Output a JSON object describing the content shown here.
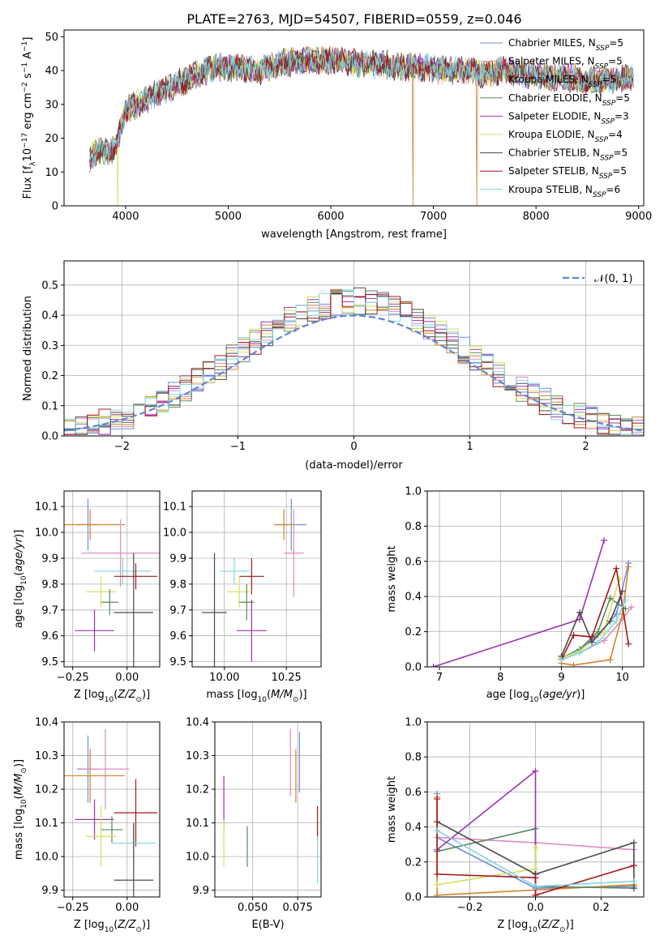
{
  "figure_title": "PLATE=2763, MJD=54507, FIBERID=0559, z=0.046",
  "palette": {
    "Chabrier MILES": "#6b8fdc",
    "Salpeter MILES": "#e08bbd",
    "Kroupa MILES": "#d4832e",
    "Chabrier ELODIE": "#5a8a5e",
    "Salpeter ELODIE": "#9b33b0",
    "Kroupa ELODIE": "#d4e05a",
    "Chabrier STELIB": "#4a4a4a",
    "Salpeter STELIB": "#a5171c",
    "Kroupa STELIB": "#7fd6e2"
  },
  "chart_data": [
    {
      "id": "spectrum",
      "type": "line",
      "title": "PLATE=2763, MJD=54507, FIBERID=0559, z=0.046",
      "xlabel": "wavelength [Angstrom, rest frame]",
      "ylabel": "Flux [f_λ10^−17 erg cm^−2 s^−1 A^−1]",
      "xlim": [
        3400,
        9050
      ],
      "ylim": [
        0,
        52
      ],
      "xticks": [
        "4000",
        "5000",
        "6000",
        "7000",
        "8000",
        "9000"
      ],
      "yticks": [
        "0",
        "10",
        "20",
        "30",
        "40",
        "50"
      ],
      "grid": false,
      "legend_position": "top-right",
      "legend": [
        {
          "model": "Chabrier MILES",
          "nssp": "5"
        },
        {
          "model": "Salpeter MILES",
          "nssp": "5"
        },
        {
          "model": "Kroupa MILES",
          "nssp": "5"
        },
        {
          "model": "Chabrier ELODIE",
          "nssp": "5"
        },
        {
          "model": "Salpeter ELODIE",
          "nssp": "3"
        },
        {
          "model": "Kroupa ELODIE",
          "nssp": "4"
        },
        {
          "model": "Chabrier STELIB",
          "nssp": "5"
        },
        {
          "model": "Salpeter STELIB",
          "nssp": "5"
        },
        {
          "model": "Kroupa STELIB",
          "nssp": "6"
        }
      ],
      "spectrum_envelope": {
        "x": [
          3650,
          3700,
          3800,
          3900,
          4000,
          4100,
          4300,
          4500,
          4700,
          4900,
          5100,
          5300,
          5500,
          5700,
          5900,
          6100,
          6300,
          6500,
          6700,
          6900,
          7100,
          7300,
          7500,
          7700,
          7900,
          8100,
          8300,
          8500,
          8700,
          8900
        ],
        "y": [
          14,
          16,
          16,
          17,
          28,
          30,
          33,
          36,
          39,
          41,
          41,
          40,
          42,
          43,
          43,
          43,
          42,
          42,
          41,
          41,
          40,
          40,
          39,
          40,
          39,
          38,
          38,
          37,
          37,
          38
        ]
      },
      "dips": [
        {
          "x": 3920,
          "y": 0,
          "series": "Kroupa ELODIE"
        },
        {
          "x": 6800,
          "y": 0,
          "series": "Kroupa MILES"
        },
        {
          "x": 7420,
          "y": 0,
          "series": "Kroupa MILES"
        }
      ]
    },
    {
      "id": "residuals",
      "type": "step",
      "xlabel": "(data-model)/error",
      "ylabel": "Normed distribution",
      "xlim": [
        -2.5,
        2.5
      ],
      "ylim": [
        0,
        0.58
      ],
      "xticks": [
        "−2",
        "−1",
        "0",
        "1",
        "2"
      ],
      "yticks": [
        "0.0",
        "0.1",
        "0.2",
        "0.3",
        "0.4",
        "0.5"
      ],
      "grid": true,
      "legend_position": "top-right",
      "reference_curve": {
        "label": "𝒩(0, 1)",
        "mean": 0,
        "sigma": 1,
        "color": "#5b87d4"
      },
      "bin_width": 0.1
    },
    {
      "id": "age_vs_Z",
      "type": "errorbar",
      "xlabel": "Z [log10(Z/Z⊙)]",
      "ylabel": "age [log10(age/yr)]",
      "xlim": [
        -0.29,
        0.15
      ],
      "ylim": [
        9.48,
        10.16
      ],
      "xticks": [
        "−0.25",
        "0.00"
      ],
      "yticks": [
        "9.5",
        "9.6",
        "9.7",
        "9.8",
        "9.9",
        "10.0",
        "10.1"
      ],
      "grid": true,
      "points": [
        {
          "series": "Chabrier MILES",
          "x": -0.18,
          "xerr": 0.05,
          "y": 10.03,
          "yerr": 0.1
        },
        {
          "series": "Kroupa MILES",
          "x": -0.17,
          "xerr": 0.16,
          "y": 10.03,
          "yerr": 0.06
        },
        {
          "series": "Salpeter MILES",
          "x": -0.03,
          "xerr": 0.18,
          "y": 9.92,
          "yerr": 0.13
        },
        {
          "series": "Kroupa STELIB",
          "x": -0.02,
          "xerr": 0.13,
          "y": 9.85,
          "yerr": 0.05
        },
        {
          "series": "Salpeter STELIB",
          "x": 0.04,
          "xerr": 0.1,
          "y": 9.83,
          "yerr": 0.05
        },
        {
          "series": "Kroupa ELODIE",
          "x": -0.12,
          "xerr": 0.07,
          "y": 9.77,
          "yerr": 0.06
        },
        {
          "series": "Chabrier ELODIE",
          "x": -0.08,
          "xerr": 0.04,
          "y": 9.73,
          "yerr": 0.05
        },
        {
          "series": "Chabrier STELIB",
          "x": 0.03,
          "xerr": 0.09,
          "y": 9.69,
          "yerr": 0.23
        },
        {
          "series": "Salpeter ELODIE",
          "x": -0.15,
          "xerr": 0.09,
          "y": 9.62,
          "yerr": 0.08
        }
      ]
    },
    {
      "id": "age_vs_mass",
      "type": "errorbar",
      "xlabel": "mass [log10(M/M⊙)]",
      "ylabel": "",
      "xlim": [
        9.87,
        10.39
      ],
      "ylim": [
        9.48,
        10.16
      ],
      "xticks": [
        "10.00",
        "10.25"
      ],
      "yticks": [
        "9.5",
        "9.6",
        "9.7",
        "9.8",
        "9.9",
        "10.0",
        "10.1"
      ],
      "grid": true,
      "points": [
        {
          "series": "Chabrier MILES",
          "x": 10.27,
          "xerr": 0.06,
          "y": 10.03,
          "yerr": 0.1
        },
        {
          "series": "Kroupa MILES",
          "x": 10.24,
          "xerr": 0.04,
          "y": 10.03,
          "yerr": 0.06
        },
        {
          "series": "Salpeter MILES",
          "x": 10.28,
          "xerr": 0.04,
          "y": 9.92,
          "yerr": 0.17
        },
        {
          "series": "Kroupa STELIB",
          "x": 10.04,
          "xerr": 0.06,
          "y": 9.85,
          "yerr": 0.05
        },
        {
          "series": "Salpeter STELIB",
          "x": 10.11,
          "xerr": 0.05,
          "y": 9.83,
          "yerr": 0.07
        },
        {
          "series": "Kroupa ELODIE",
          "x": 10.06,
          "xerr": 0.05,
          "y": 9.77,
          "yerr": 0.06
        },
        {
          "series": "Chabrier ELODIE",
          "x": 10.09,
          "xerr": 0.03,
          "y": 9.73,
          "yerr": 0.07
        },
        {
          "series": "Chabrier STELIB",
          "x": 9.96,
          "xerr": 0.05,
          "y": 9.69,
          "yerr": 0.23
        },
        {
          "series": "Salpeter ELODIE",
          "x": 10.11,
          "xerr": 0.06,
          "y": 9.62,
          "yerr": 0.12
        }
      ]
    },
    {
      "id": "weight_vs_age",
      "type": "line",
      "xlabel": "age [log10(age/yr)]",
      "ylabel": "mass weight",
      "xlim": [
        6.8,
        10.35
      ],
      "ylim": [
        0,
        1.0
      ],
      "xticks": [
        "7",
        "8",
        "9",
        "10"
      ],
      "yticks": [
        "0.0",
        "0.2",
        "0.4",
        "0.6",
        "0.8",
        "1.0"
      ],
      "grid": true,
      "series": [
        {
          "name": "Chabrier MILES",
          "points": [
            [
              9.0,
              0.05
            ],
            [
              9.3,
              0.1
            ],
            [
              9.6,
              0.18
            ],
            [
              9.9,
              0.3
            ],
            [
              10.1,
              0.59
            ]
          ]
        },
        {
          "name": "Salpeter MILES",
          "points": [
            [
              9.0,
              0.04
            ],
            [
              9.3,
              0.08
            ],
            [
              9.7,
              0.15
            ],
            [
              10.0,
              0.27
            ],
            [
              10.15,
              0.34
            ]
          ]
        },
        {
          "name": "Kroupa MILES",
          "points": [
            [
              9.0,
              0.02
            ],
            [
              9.2,
              0.01
            ],
            [
              9.8,
              0.04
            ],
            [
              10.0,
              0.3
            ],
            [
              10.1,
              0.57
            ]
          ]
        },
        {
          "name": "Chabrier ELODIE",
          "points": [
            [
              9.0,
              0.05
            ],
            [
              9.3,
              0.1
            ],
            [
              9.6,
              0.2
            ],
            [
              9.8,
              0.39
            ],
            [
              10.05,
              0.33
            ]
          ]
        },
        {
          "name": "Salpeter ELODIE",
          "points": [
            [
              6.9,
              0.0
            ],
            [
              9.3,
              0.27
            ],
            [
              9.7,
              0.72
            ]
          ]
        },
        {
          "name": "Kroupa ELODIE",
          "points": [
            [
              9.0,
              0.05
            ],
            [
              9.3,
              0.09
            ],
            [
              9.7,
              0.2
            ],
            [
              9.95,
              0.5
            ]
          ]
        },
        {
          "name": "Chabrier STELIB",
          "points": [
            [
              9.0,
              0.06
            ],
            [
              9.3,
              0.31
            ],
            [
              9.5,
              0.14
            ],
            [
              9.8,
              0.26
            ],
            [
              10.0,
              0.43
            ]
          ]
        },
        {
          "name": "Salpeter STELIB",
          "points": [
            [
              9.0,
              0.04
            ],
            [
              9.2,
              0.18
            ],
            [
              9.5,
              0.17
            ],
            [
              9.9,
              0.56
            ],
            [
              10.1,
              0.13
            ]
          ]
        },
        {
          "name": "Kroupa STELIB",
          "points": [
            [
              9.0,
              0.04
            ],
            [
              9.3,
              0.08
            ],
            [
              9.6,
              0.14
            ],
            [
              9.9,
              0.26
            ],
            [
              10.05,
              0.38
            ]
          ]
        }
      ]
    },
    {
      "id": "mass_vs_Z",
      "type": "errorbar",
      "xlabel": "Z [log10(Z/Z⊙)]",
      "ylabel": "mass [log10(M/M⊙)]",
      "xlim": [
        -0.29,
        0.15
      ],
      "ylim": [
        9.88,
        10.4
      ],
      "xticks": [
        "−0.25",
        "0.00"
      ],
      "yticks": [
        "9.9",
        "10.0",
        "10.1",
        "10.2",
        "10.3",
        "10.4"
      ],
      "grid": true,
      "points": [
        {
          "series": "Chabrier MILES",
          "x": -0.18,
          "xerr": 0.05,
          "y": 10.26,
          "yerr": 0.1
        },
        {
          "series": "Salpeter MILES",
          "x": -0.1,
          "xerr": 0.11,
          "y": 10.26,
          "yerr": 0.12
        },
        {
          "series": "Kroupa MILES",
          "x": -0.17,
          "xerr": 0.16,
          "y": 10.24,
          "yerr": 0.08
        },
        {
          "series": "Salpeter STELIB",
          "x": 0.04,
          "xerr": 0.1,
          "y": 10.13,
          "yerr": 0.1
        },
        {
          "series": "Salpeter ELODIE",
          "x": -0.15,
          "xerr": 0.09,
          "y": 10.11,
          "yerr": 0.06
        },
        {
          "series": "Chabrier ELODIE",
          "x": -0.07,
          "xerr": 0.05,
          "y": 10.08,
          "yerr": 0.04
        },
        {
          "series": "Kroupa ELODIE",
          "x": -0.12,
          "xerr": 0.07,
          "y": 10.06,
          "yerr": 0.09
        },
        {
          "series": "Kroupa STELIB",
          "x": 0.03,
          "xerr": 0.1,
          "y": 10.04,
          "yerr": 0.06
        },
        {
          "series": "Chabrier STELIB",
          "x": 0.03,
          "xerr": 0.09,
          "y": 9.93,
          "yerr": 0.17
        }
      ]
    },
    {
      "id": "mass_vs_ebv",
      "type": "errorbar",
      "xlabel": "E(B-V)",
      "ylabel": "",
      "xlim": [
        0.029,
        0.088
      ],
      "ylim": [
        9.88,
        10.4
      ],
      "xticks": [
        "0.050",
        "0.075"
      ],
      "yticks": [
        "9.9",
        "10.0",
        "10.1",
        "10.2",
        "10.3",
        "10.4"
      ],
      "grid": true,
      "points": [
        {
          "series": "Chabrier MILES",
          "x": 0.076,
          "xerr": 0,
          "y": 10.28,
          "yerr": 0.09
        },
        {
          "series": "Salpeter MILES",
          "x": 0.071,
          "xerr": 0,
          "y": 10.28,
          "yerr": 0.1
        },
        {
          "series": "Kroupa MILES",
          "x": 0.074,
          "xerr": 0,
          "y": 10.24,
          "yerr": 0.08
        },
        {
          "series": "Salpeter ELODIE",
          "x": 0.034,
          "xerr": 0,
          "y": 10.16,
          "yerr": 0.08
        },
        {
          "series": "Salpeter STELIB",
          "x": 0.086,
          "xerr": 0,
          "y": 10.1,
          "yerr": 0.05
        },
        {
          "series": "Kroupa ELODIE",
          "x": 0.034,
          "xerr": 0,
          "y": 10.04,
          "yerr": 0.07
        },
        {
          "series": "Chabrier ELODIE",
          "x": 0.047,
          "xerr": 0,
          "y": 10.03,
          "yerr": 0.06
        },
        {
          "series": "Kroupa STELIB",
          "x": 0.086,
          "xerr": 0,
          "y": 9.99,
          "yerr": 0.07
        }
      ]
    },
    {
      "id": "weight_vs_Z",
      "type": "line",
      "xlabel": "Z [log10(Z/Z⊙)]",
      "ylabel": "mass weight",
      "xlim": [
        -0.33,
        0.33
      ],
      "ylim": [
        0,
        1.0
      ],
      "xticks": [
        "−0.2",
        "0.0",
        "0.2"
      ],
      "yticks": [
        "0.0",
        "0.2",
        "0.4",
        "0.6",
        "0.8",
        "1.0"
      ],
      "grid": true,
      "series": [
        {
          "name": "Chabrier MILES",
          "points": [
            [
              -0.3,
              0.59
            ],
            [
              -0.3,
              0.34
            ],
            [
              0.0,
              0.05
            ],
            [
              0.3,
              0.06
            ]
          ]
        },
        {
          "name": "Salpeter MILES",
          "points": [
            [
              -0.3,
              0.34
            ],
            [
              0.0,
              0.31
            ],
            [
              0.3,
              0.27
            ]
          ]
        },
        {
          "name": "Kroupa MILES",
          "points": [
            [
              -0.3,
              0.57
            ],
            [
              -0.3,
              0.01
            ],
            [
              0.0,
              0.04
            ],
            [
              0.3,
              0.07
            ]
          ]
        },
        {
          "name": "Chabrier ELODIE",
          "points": [
            [
              -0.3,
              0.26
            ],
            [
              0.0,
              0.39
            ],
            [
              0.0,
              0.06
            ],
            [
              0.3,
              0.05
            ]
          ]
        },
        {
          "name": "Salpeter ELODIE",
          "points": [
            [
              -0.3,
              0.27
            ],
            [
              0.0,
              0.72
            ],
            [
              0.0,
              0.01
            ]
          ]
        },
        {
          "name": "Kroupa ELODIE",
          "points": [
            [
              -0.3,
              0.07
            ],
            [
              0.0,
              0.16
            ],
            [
              0.0,
              0.28
            ]
          ]
        },
        {
          "name": "Chabrier STELIB",
          "points": [
            [
              -0.3,
              0.43
            ],
            [
              0.0,
              0.13
            ],
            [
              0.3,
              0.31
            ],
            [
              0.3,
              0.05
            ]
          ]
        },
        {
          "name": "Salpeter STELIB",
          "points": [
            [
              -0.3,
              0.56
            ],
            [
              -0.3,
              0.13
            ],
            [
              0.0,
              0.11
            ],
            [
              0.0,
              0.01
            ],
            [
              0.3,
              0.18
            ]
          ]
        },
        {
          "name": "Kroupa STELIB",
          "points": [
            [
              -0.3,
              0.38
            ],
            [
              0.0,
              0.06
            ],
            [
              0.3,
              0.09
            ]
          ]
        }
      ]
    }
  ]
}
